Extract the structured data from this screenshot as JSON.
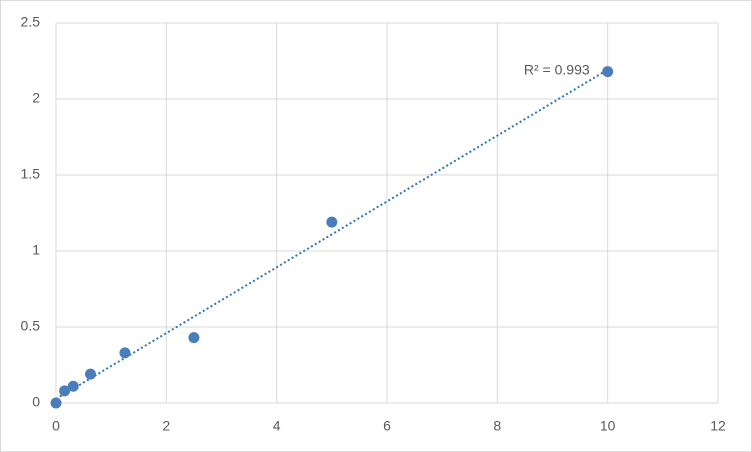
{
  "chart_data": {
    "type": "scatter",
    "x": [
      0,
      0.156,
      0.3125,
      0.625,
      1.25,
      2.5,
      5,
      10
    ],
    "values": [
      0,
      0.08,
      0.11,
      0.19,
      0.33,
      0.43,
      1.19,
      2.18
    ],
    "color": "#4a7ebb",
    "trendline": "linear",
    "trendline_color": "#2e75b6",
    "annotation": "R² = 0.993",
    "xlim": [
      0,
      12
    ],
    "xticks": [
      0,
      2,
      4,
      6,
      8,
      10,
      12
    ],
    "ylim": [
      0,
      2.5
    ],
    "yticks": [
      0,
      0.5,
      1,
      1.5,
      2,
      2.5
    ],
    "grid": true
  }
}
